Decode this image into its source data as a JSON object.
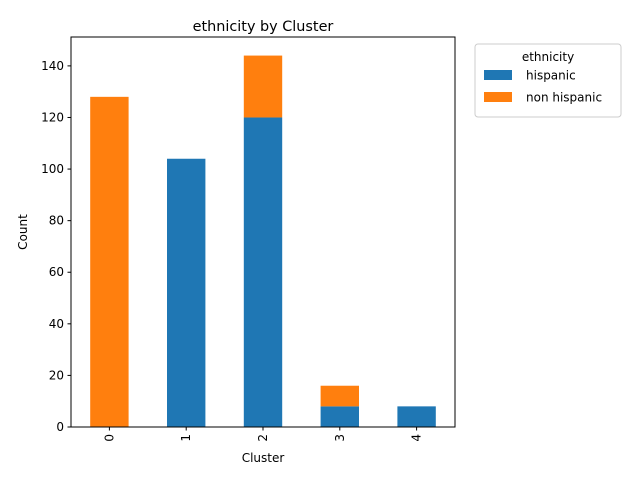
{
  "chart_data": {
    "type": "bar",
    "stacked": true,
    "title": "ethnicity by Cluster",
    "xlabel": "Cluster",
    "ylabel": "Count",
    "categories": [
      "0",
      "1",
      "2",
      "3",
      "4"
    ],
    "series": [
      {
        "name": "hispanic",
        "color": "#1f77b4",
        "values": [
          0,
          104,
          120,
          8,
          8
        ]
      },
      {
        "name": "non hispanic",
        "color": "#ff7f0e",
        "values": [
          128,
          0,
          24,
          8,
          0
        ]
      }
    ],
    "ylim": [
      0,
      151.2
    ],
    "yticks": [
      0,
      20,
      40,
      60,
      80,
      100,
      120,
      140
    ],
    "grid": false,
    "legend": {
      "title": "ethnicity",
      "placement": "outside-upper-right"
    }
  }
}
